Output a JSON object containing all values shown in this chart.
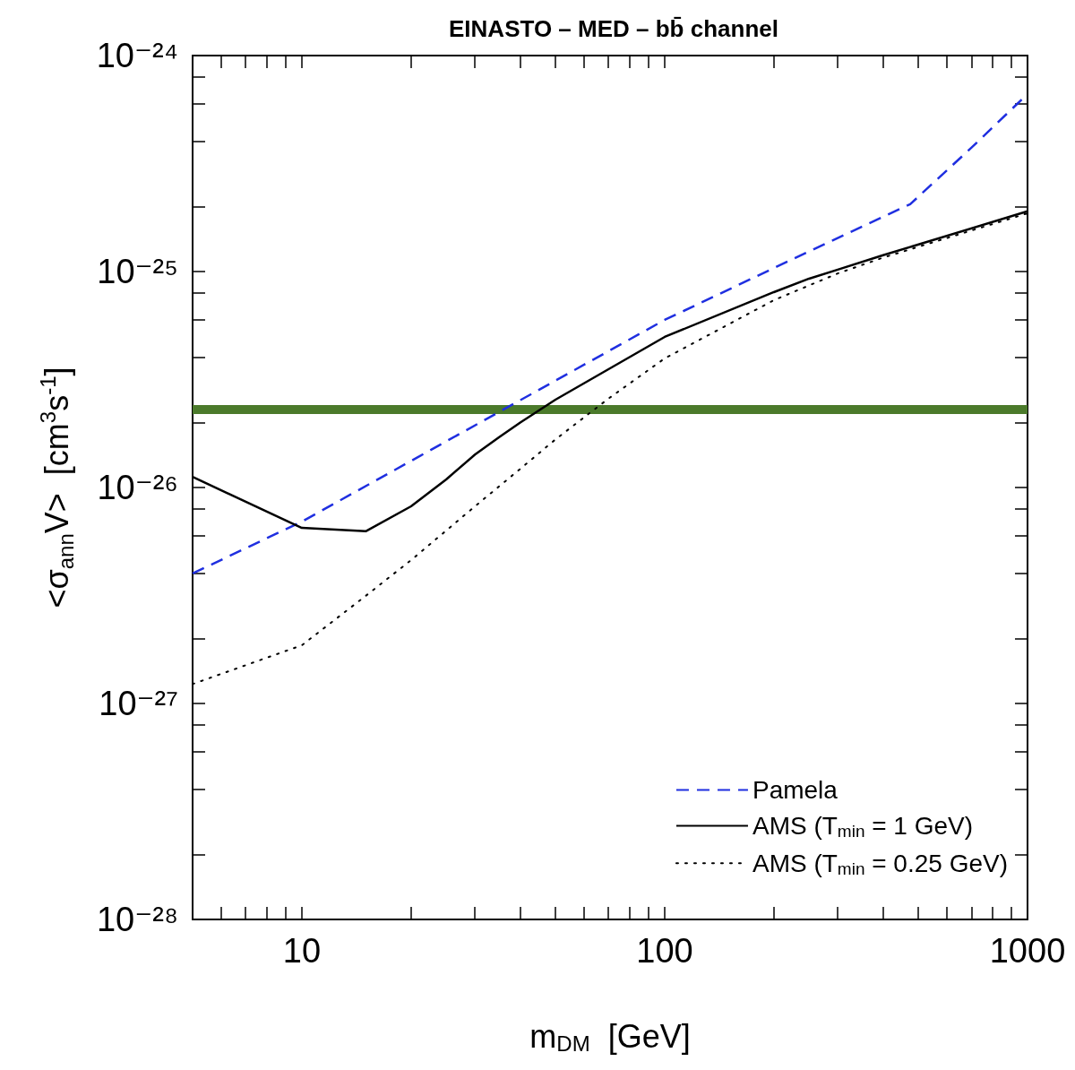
{
  "chart_data": {
    "type": "line",
    "title": "EINASTO – MED – bb̄ channel",
    "xlabel": "m$_{DM}$  [GeV]",
    "ylabel": "<σ$_{ann}$V>  [cm$^{3}$s$^{-1}$]",
    "log": "xy",
    "grid": false,
    "legend": "bottom right",
    "marker": "none",
    "xlim": [
      5,
      1000
    ],
    "xticks": [
      {
        "value": 5,
        "label": null
      },
      {
        "value": 6,
        "label": null
      },
      {
        "value": 7,
        "label": null
      },
      {
        "value": 8,
        "label": null
      },
      {
        "value": 9,
        "label": null
      },
      10,
      {
        "value": 20,
        "label": null
      },
      {
        "value": 30,
        "label": null
      },
      {
        "value": 40,
        "label": null
      },
      {
        "value": 50,
        "label": null
      },
      {
        "value": 60,
        "label": null
      },
      {
        "value": 70,
        "label": null
      },
      {
        "value": 80,
        "label": null
      },
      {
        "value": 90,
        "label": null
      },
      100,
      {
        "value": 200,
        "label": null
      },
      {
        "value": 300,
        "label": null
      },
      {
        "value": 400,
        "label": null
      },
      {
        "value": 500,
        "label": null
      },
      {
        "value": 600,
        "label": null
      },
      {
        "value": 700,
        "label": null
      },
      {
        "value": 800,
        "label": null
      },
      {
        "value": 900,
        "label": null
      },
      1000
    ],
    "ylim": [
      1e-28,
      1e-24
    ],
    "yticks": [
      {
        "value": 1e-28,
        "label": "10⁻²⁸"
      },
      {
        "value": 2e-28,
        "label": null
      },
      {
        "value": 4e-28,
        "label": null
      },
      {
        "value": 6e-28,
        "label": null
      },
      {
        "value": 8e-28,
        "label": null
      },
      {
        "value": 1e-27,
        "label": "10⁻²⁷"
      },
      {
        "value": 2e-27,
        "label": null
      },
      {
        "value": 4e-27,
        "label": null
      },
      {
        "value": 6e-27,
        "label": null
      },
      {
        "value": 8e-27,
        "label": null
      },
      {
        "value": 1e-26,
        "label": "10⁻²⁶"
      },
      {
        "value": 2e-26,
        "label": null
      },
      {
        "value": 4e-26,
        "label": null
      },
      {
        "value": 6e-26,
        "label": null
      },
      {
        "value": 8e-26,
        "label": null
      },
      {
        "value": 1e-25,
        "label": "10⁻²⁵"
      },
      {
        "value": 2e-25,
        "label": null
      },
      {
        "value": 4e-25,
        "label": null
      },
      {
        "value": 6e-25,
        "label": null
      },
      {
        "value": 8e-25,
        "label": null
      },
      {
        "value": 1e-24,
        "label": "10⁻²⁴"
      }
    ],
    "ref_lines": [
      {
        "axis": "y",
        "value": 2.27e-26,
        "color": "#4b7a2b"
      }
    ],
    "series": [
      {
        "name": "Pamela",
        "color": "#1f2fe0",
        "line_style": "dashed",
        "x": [
          5,
          10,
          100,
          250,
          475,
          700,
          1000
        ],
        "values": [
          4e-27,
          6.95e-27,
          5.97e-26,
          1.24e-25,
          2.05e-25,
          3.74e-25,
          6.64e-25
        ]
      },
      {
        "name": "AMS (T$_{min}$ = 1 GeV)",
        "color": "#000000",
        "line_style": "solid",
        "x": [
          5,
          10,
          15,
          20,
          25,
          30,
          35,
          40,
          50,
          100,
          200,
          250,
          300,
          400,
          1000
        ],
        "values": [
          1.12e-26,
          6.5e-27,
          6.27e-27,
          8.18e-27,
          1.09e-26,
          1.42e-26,
          1.71e-26,
          2e-26,
          2.55e-26,
          4.98e-26,
          8.03e-26,
          9.27e-26,
          1.02e-25,
          1.19e-25,
          1.9e-25
        ]
      },
      {
        "name": "AMS (T$_{min}$ = 0.25 GeV)",
        "color": "#000000",
        "line_style": "dotted",
        "x": [
          5,
          10,
          15,
          20,
          30,
          40,
          50,
          70,
          100,
          200,
          300,
          400,
          1000
        ],
        "values": [
          1.23e-27,
          1.86e-27,
          3.15e-27,
          4.61e-27,
          8.18e-27,
          1.22e-26,
          1.67e-26,
          2.58e-26,
          3.96e-26,
          7.37e-26,
          9.8e-26,
          1.16e-25,
          1.86e-25
        ]
      }
    ]
  }
}
